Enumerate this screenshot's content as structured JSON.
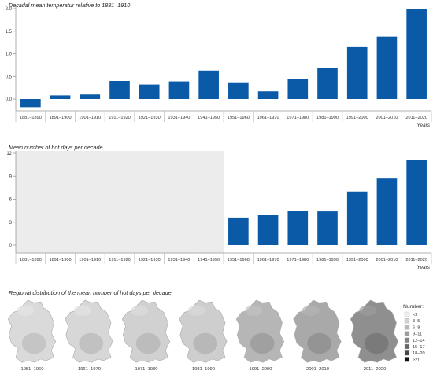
{
  "chart_data": [
    {
      "type": "bar",
      "title": "Decadal mean temperatur relative to 1881–1910",
      "xlabel": "Years",
      "ylabel": "",
      "ylim": [
        -0.25,
        2.0
      ],
      "yticks": [
        0.0,
        0.5,
        1.0,
        1.5,
        2.0
      ],
      "ytick_labels": [
        "0.0",
        "0.5",
        "1.0",
        "1.5",
        "2.0"
      ],
      "categories": [
        "1881–1890",
        "1891–1900",
        "1901–1910",
        "1911–1920",
        "1921–1930",
        "1931–1940",
        "1941–1950",
        "1951–1960",
        "1961–1970",
        "1971–1980",
        "1981–1990",
        "1991–2000",
        "2001–2010",
        "2011–2020"
      ],
      "values": [
        -0.18,
        0.08,
        0.1,
        0.4,
        0.32,
        0.39,
        0.63,
        0.37,
        0.17,
        0.44,
        0.69,
        1.15,
        1.38,
        2.0
      ],
      "grid": false
    },
    {
      "type": "bar",
      "title": "Mean number of hot days per decade",
      "xlabel": "Years",
      "ylabel": "",
      "ylim": [
        -1,
        12
      ],
      "yticks": [
        0,
        3,
        6,
        9,
        12
      ],
      "ytick_labels": [
        "0",
        "3",
        "6",
        "9",
        "12"
      ],
      "categories": [
        "1881–1890",
        "1891–1900",
        "1901–1910",
        "1911–1920",
        "1921–1930",
        "1931–1940",
        "1941–1950",
        "1951–1960",
        "1961–1970",
        "1971–1980",
        "1981–1990",
        "1991–2000",
        "2001–2010",
        "2011–2020"
      ],
      "values": [
        null,
        null,
        null,
        null,
        null,
        null,
        null,
        3.6,
        4.0,
        4.5,
        4.4,
        7.0,
        8.7,
        11.1
      ],
      "shaded_no_data_range": [
        "1881–1890",
        "1941–1950"
      ],
      "grid": false
    }
  ],
  "maps": {
    "title": "Regional distribution of the mean number of hot days per decade",
    "panels": [
      {
        "label": "1951–1960",
        "level": 0.12
      },
      {
        "label": "1961–1970",
        "level": 0.14
      },
      {
        "label": "1971–1980",
        "level": 0.18
      },
      {
        "label": "1981–1990",
        "level": 0.2
      },
      {
        "label": "1991–2000",
        "level": 0.36
      },
      {
        "label": "2001–2010",
        "level": 0.45
      },
      {
        "label": "2011–2020",
        "level": 0.62
      }
    ],
    "legend": {
      "title": "Number:",
      "items": [
        {
          "label": "<3",
          "color": "#eeeeee"
        },
        {
          "label": "3–5",
          "color": "#d2d2d2"
        },
        {
          "label": "6–8",
          "color": "#b9b9b9"
        },
        {
          "label": "9–11",
          "color": "#9e9e9e"
        },
        {
          "label": "12–14",
          "color": "#838383"
        },
        {
          "label": "15–17",
          "color": "#666666"
        },
        {
          "label": "18–20",
          "color": "#474747"
        },
        {
          "label": "≥21",
          "color": "#111111"
        }
      ]
    }
  },
  "colors": {
    "bar": "#0a5aa8",
    "axis": "#999999",
    "nodata": "#ececec"
  }
}
